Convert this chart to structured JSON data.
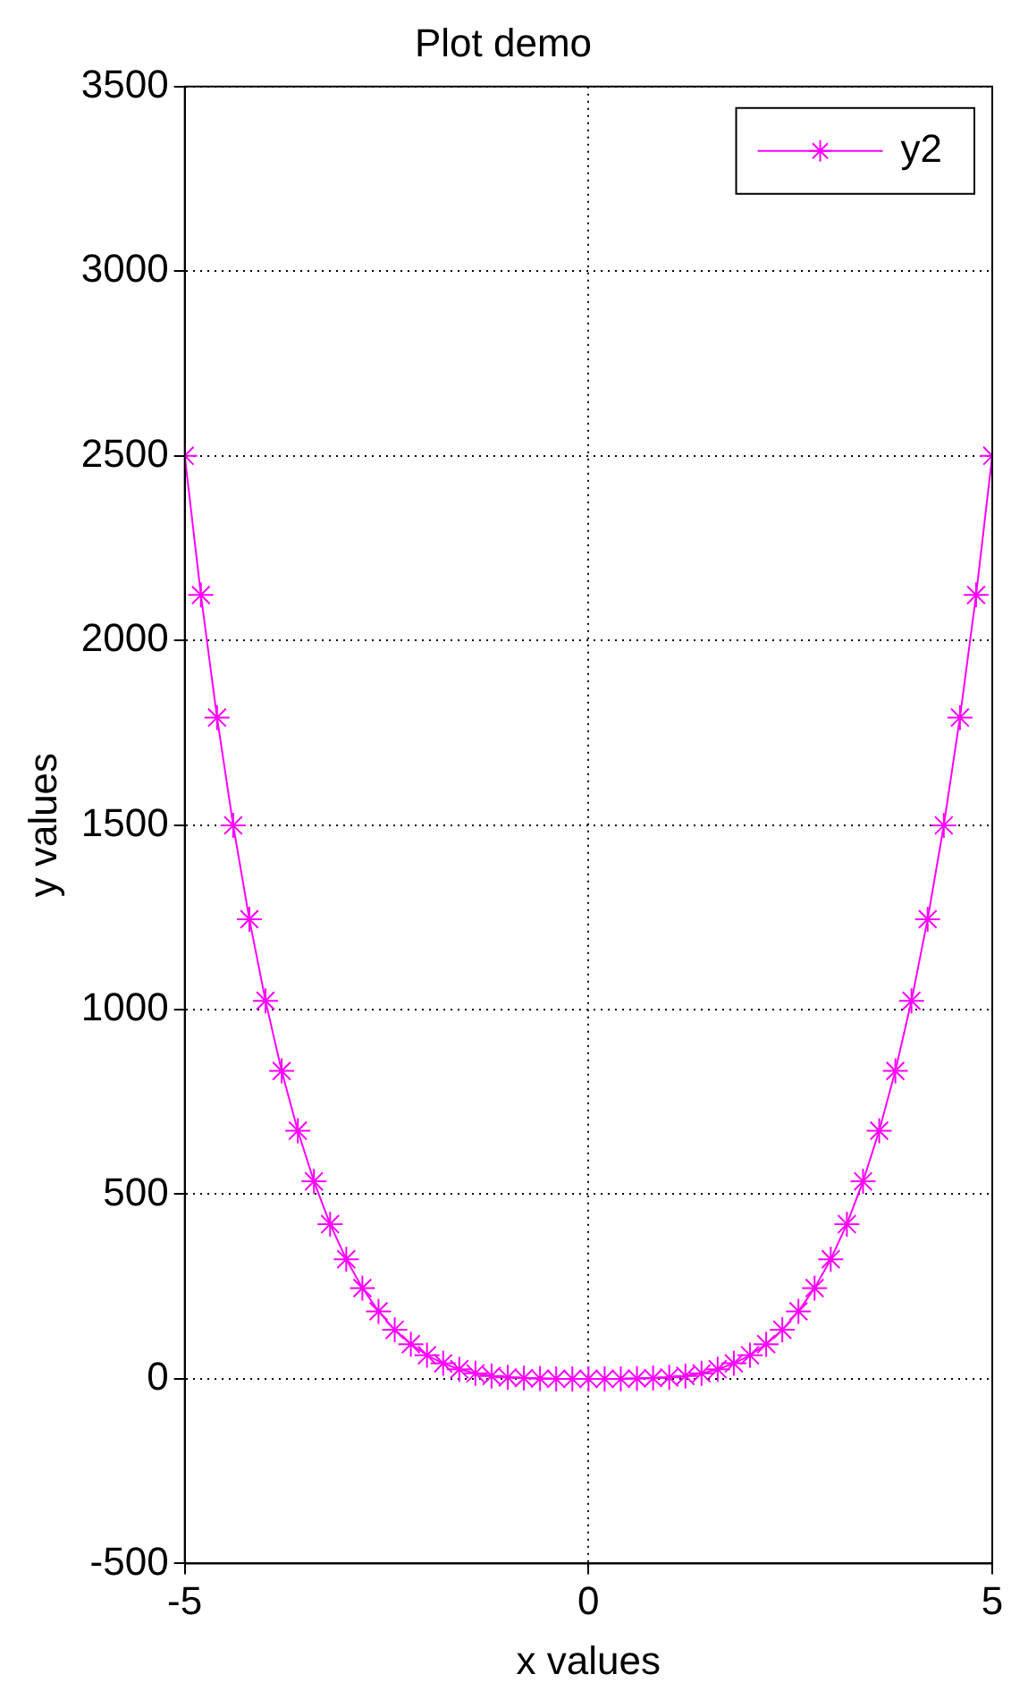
{
  "chart_data": {
    "type": "line",
    "title": "Plot demo",
    "xlabel": "x values",
    "ylabel": "y values",
    "x": [
      -5,
      -4.8,
      -4.6,
      -4.4,
      -4.2,
      -4,
      -3.8,
      -3.6,
      -3.4,
      -3.2,
      -3,
      -2.8,
      -2.6,
      -2.4,
      -2.2,
      -2,
      -1.8,
      -1.6,
      -1.4,
      -1.2,
      -1,
      -0.8,
      -0.6,
      -0.4,
      -0.2,
      0,
      0.2,
      0.4,
      0.6,
      0.8,
      1,
      1.2,
      1.4,
      1.6,
      1.8,
      2,
      2.2,
      2.4,
      2.6,
      2.8,
      3,
      3.2,
      3.4,
      3.6,
      3.8,
      4,
      4.2,
      4.4,
      4.6,
      4.8,
      5
    ],
    "series": [
      {
        "name": "y2",
        "color": "#ff00ff",
        "values": [
          2500,
          2123,
          1791,
          1499,
          1245,
          1024,
          834,
          672,
          535,
          419,
          324,
          246,
          183,
          133,
          94,
          64,
          42,
          26,
          15,
          8,
          4,
          2,
          1,
          0,
          0,
          0,
          0,
          0,
          1,
          2,
          4,
          8,
          15,
          26,
          42,
          64,
          94,
          133,
          183,
          246,
          324,
          419,
          535,
          672,
          834,
          1024,
          1245,
          1499,
          1791,
          2123,
          2500
        ]
      }
    ],
    "xlim": [
      -5,
      5
    ],
    "xticks": [
      -5,
      0,
      5
    ],
    "ylim": [
      -500,
      3500
    ],
    "yticks": [
      -500,
      0,
      500,
      1000,
      1500,
      2000,
      2500,
      3000,
      3500
    ],
    "grid": true,
    "legend": "top right",
    "marker": "cross",
    "line_style": "solid"
  }
}
